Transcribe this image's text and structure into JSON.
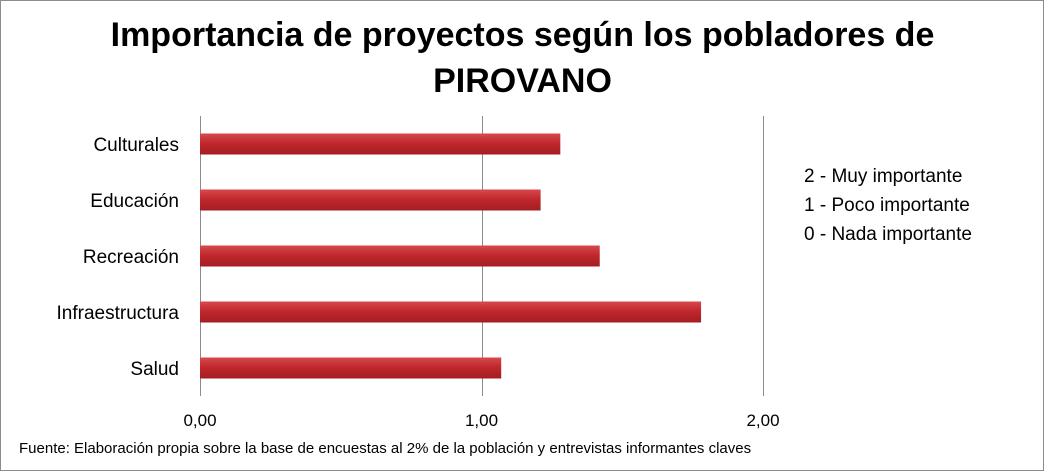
{
  "chart_data": {
    "type": "bar",
    "orientation": "horizontal",
    "title": "Importancia de proyectos según los pobladores de\nPIROVANO",
    "categories": [
      "Culturales",
      "Educación",
      "Recreación",
      "Infraestructura",
      "Salud"
    ],
    "values": [
      1.28,
      1.21,
      1.42,
      1.78,
      1.07
    ],
    "xlim": [
      0,
      2
    ],
    "xticks": [
      0,
      1,
      2
    ],
    "xtick_labels": [
      "0,00",
      "1,00",
      "2,00"
    ],
    "grid": "vertical",
    "bar_color": "#c0282d",
    "legend": [
      "2 - Muy importante",
      "1 - Poco importante",
      "0 - Nada importante"
    ],
    "legend_position": "right",
    "source": "Fuente: Elaboración propia sobre la base de encuestas al 2%  de la población y entrevistas informantes claves"
  }
}
